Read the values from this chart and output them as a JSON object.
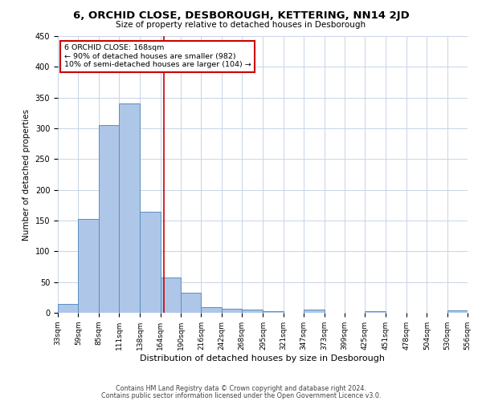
{
  "title": "6, ORCHID CLOSE, DESBOROUGH, KETTERING, NN14 2JD",
  "subtitle": "Size of property relative to detached houses in Desborough",
  "xlabel": "Distribution of detached houses by size in Desborough",
  "ylabel": "Number of detached properties",
  "bin_edges": [
    33,
    59,
    85,
    111,
    138,
    164,
    190,
    216,
    242,
    268,
    295,
    321,
    347,
    373,
    399,
    425,
    451,
    478,
    504,
    530,
    556
  ],
  "bin_labels": [
    "33sqm",
    "59sqm",
    "85sqm",
    "111sqm",
    "138sqm",
    "164sqm",
    "190sqm",
    "216sqm",
    "242sqm",
    "268sqm",
    "295sqm",
    "321sqm",
    "347sqm",
    "373sqm",
    "399sqm",
    "425sqm",
    "451sqm",
    "478sqm",
    "504sqm",
    "530sqm",
    "556sqm"
  ],
  "bar_heights": [
    15,
    152,
    305,
    340,
    165,
    57,
    33,
    9,
    7,
    5,
    2,
    0,
    5,
    0,
    0,
    2,
    0,
    0,
    0,
    4
  ],
  "bar_color": "#aec6e8",
  "bar_edge_color": "#5a8fc0",
  "property_line_x": 168,
  "annotation_title": "6 ORCHID CLOSE: 168sqm",
  "annotation_line1": "← 90% of detached houses are smaller (982)",
  "annotation_line2": "10% of semi-detached houses are larger (104) →",
  "annotation_box_color": "#ffffff",
  "annotation_box_edge": "#cc0000",
  "vline_color": "#cc0000",
  "ylim": [
    0,
    450
  ],
  "yticks": [
    0,
    50,
    100,
    150,
    200,
    250,
    300,
    350,
    400,
    450
  ],
  "footer1": "Contains HM Land Registry data © Crown copyright and database right 2024.",
  "footer2": "Contains public sector information licensed under the Open Government Licence v3.0.",
  "bg_color": "#ffffff",
  "grid_color": "#c8d4e8"
}
